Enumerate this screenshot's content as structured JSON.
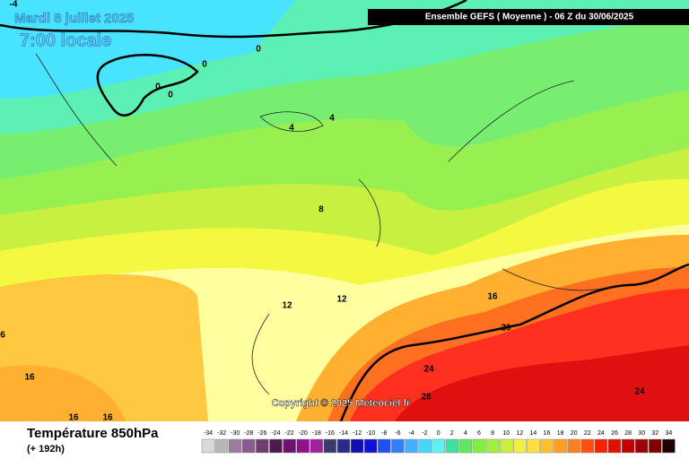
{
  "header": {
    "date": "Mardi 8 juillet 2025",
    "time": "7:00 locale",
    "model": "Ensemble GEFS  ( Moyenne )  -  06 Z du 30/06/2025"
  },
  "map": {
    "contour_labels": [
      -4,
      0,
      0,
      0,
      0,
      4,
      4,
      8,
      12,
      12,
      16,
      20,
      24,
      28,
      24,
      6,
      16,
      16,
      16
    ],
    "copyright": "Copyright © 2025 Meteociel.fr"
  },
  "footer": {
    "variable": "Température 850hPa",
    "lead": "(+ 192h)"
  },
  "legend": {
    "values": [
      -34,
      -32,
      -30,
      -28,
      -26,
      -24,
      -22,
      -20,
      -18,
      -16,
      -14,
      -12,
      -10,
      -8,
      -6,
      -4,
      -2,
      0,
      2,
      4,
      6,
      8,
      10,
      12,
      14,
      16,
      18,
      20,
      22,
      24,
      26,
      28,
      30,
      32,
      34
    ],
    "colors": [
      "#d9d9d9",
      "#b8b8b8",
      "#9c7c9c",
      "#8c5a8c",
      "#6e3c6e",
      "#4c1a4c",
      "#701070",
      "#901090",
      "#a020a0",
      "#3a3a6a",
      "#2a2a8a",
      "#1010b0",
      "#1010d8",
      "#2050f0",
      "#3080ff",
      "#40b0ff",
      "#40d8ff",
      "#60f0f0",
      "#40e0a0",
      "#60e860",
      "#80f040",
      "#a0f040",
      "#c8f040",
      "#f0f040",
      "#ffe040",
      "#ffc030",
      "#ffa020",
      "#ff8020",
      "#ff5010",
      "#ff2000",
      "#e01000",
      "#c00000",
      "#a00000",
      "#800000",
      "#200000"
    ]
  }
}
